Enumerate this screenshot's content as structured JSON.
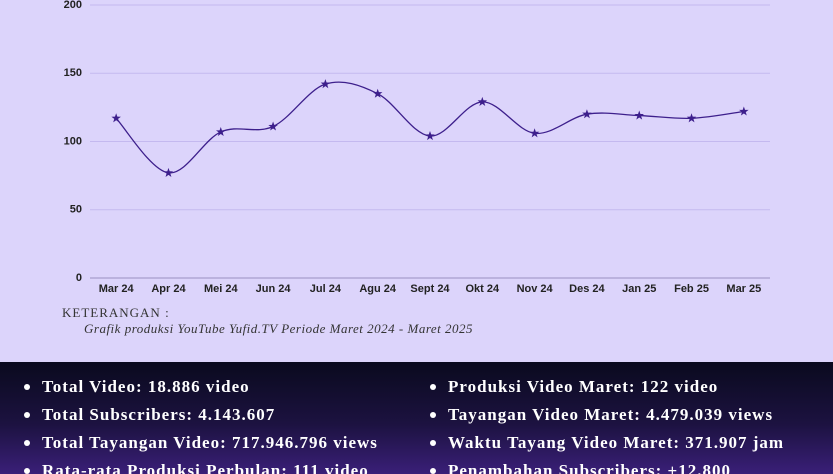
{
  "chart_data": {
    "type": "line",
    "categories": [
      "Mar 24",
      "Apr 24",
      "Mei 24",
      "Jun 24",
      "Jul 24",
      "Agu 24",
      "Sept 24",
      "Okt 24",
      "Nov 24",
      "Des 24",
      "Jan 25",
      "Feb 25",
      "Mar 25"
    ],
    "values": [
      117,
      77,
      107,
      111,
      142,
      135,
      104,
      129,
      106,
      120,
      119,
      117,
      122
    ],
    "color": "#3d1f8c",
    "ylim": [
      0,
      200
    ],
    "yticks": [
      0,
      50,
      100,
      150,
      200
    ],
    "grid": true,
    "note_title": "KETERANGAN :",
    "note": "Grafik produksi YouTube Yufid.TV Periode Maret 2024 - Maret 2025"
  },
  "summary": {
    "left": [
      "Total Video: 18.886 video",
      "Total Subscribers: 4.143.607",
      "Total Tayangan Video: 717.946.796 views",
      "Rata-rata Produksi Perbulan: 111 video"
    ],
    "right": [
      "Produksi Video Maret: 122 video",
      "Tayangan Video Maret: 4.479.039 views",
      "Waktu Tayang Video Maret: 371.907 jam",
      "Penambahan Subscribers: +12.800"
    ]
  }
}
